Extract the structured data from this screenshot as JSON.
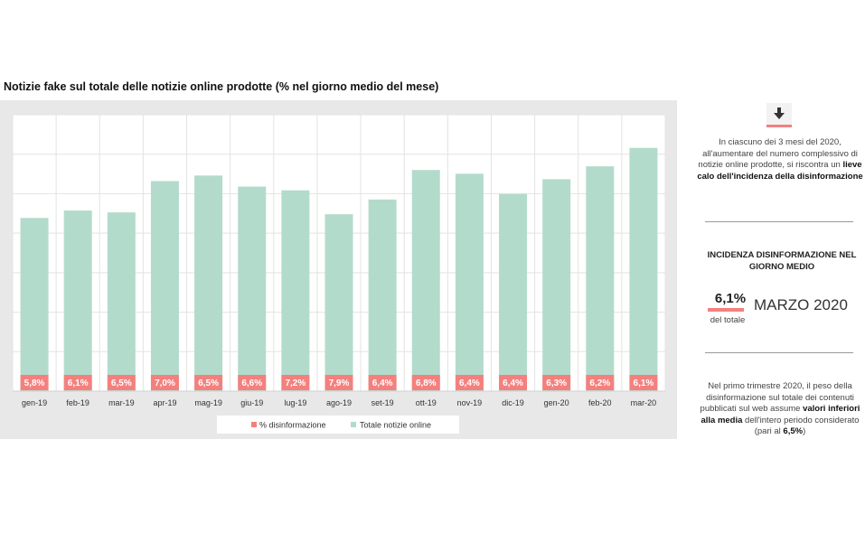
{
  "chart_data": {
    "type": "bar",
    "title": "Notizie fake sul totale delle notizie online prodotte (% nel giorno medio del mese)",
    "categories": [
      "gen-19",
      "feb-19",
      "mar-19",
      "apr-19",
      "mag-19",
      "giu-19",
      "lug-19",
      "ago-19",
      "set-19",
      "ott-19",
      "nov-19",
      "dic-19",
      "gen-20",
      "feb-20",
      "mar-20"
    ],
    "series": [
      {
        "name": "% disinformazione",
        "values": [
          5.8,
          6.1,
          6.5,
          7.0,
          6.5,
          6.6,
          7.2,
          7.9,
          6.4,
          6.8,
          6.4,
          6.4,
          6.3,
          6.2,
          6.1
        ],
        "labels": [
          "5,8%",
          "6,1%",
          "6,5%",
          "7,0%",
          "6,5%",
          "6,6%",
          "7,2%",
          "7,9%",
          "6,4%",
          "6,8%",
          "6,4%",
          "6,4%",
          "6,3%",
          "6,2%",
          "6,1%"
        ]
      },
      {
        "name": "Totale notizie online",
        "values": [
          47,
          49,
          48.5,
          57,
          58.5,
          55.5,
          54.5,
          48,
          52,
          60,
          59,
          53.5,
          57.5,
          61,
          66
        ]
      }
    ],
    "ylim": [
      0,
      75
    ],
    "grid": true,
    "legend": "bottom",
    "colors": {
      "fake": "#f4807e",
      "total": "#b3dbcb",
      "panel": "#e8e8e8"
    }
  },
  "note_top": {
    "pre": "In ciascuno dei 3 mesi del 2020, all'aumentare del numero complessivo di notizie online prodotte, si riscontra un ",
    "bold": "lieve calo dell'incidenza della disinformazione"
  },
  "kpi": {
    "heading": "INCIDENZA DISINFORMAZIONE NEL GIORNO MEDIO",
    "value": "6,1%",
    "sub": "del totale",
    "month": "MARZO 2020"
  },
  "note_bottom": {
    "pre": "Nel primo trimestre 2020, il peso della disinformazione sul totale dei contenuti pubblicati sul web assume ",
    "bold": "valori inferiori alla media",
    "mid": " dell'intero periodo considerato (pari al ",
    "bold2": "6,5%",
    "post": ")"
  },
  "icons": {
    "trend": "down-arrow-icon"
  }
}
